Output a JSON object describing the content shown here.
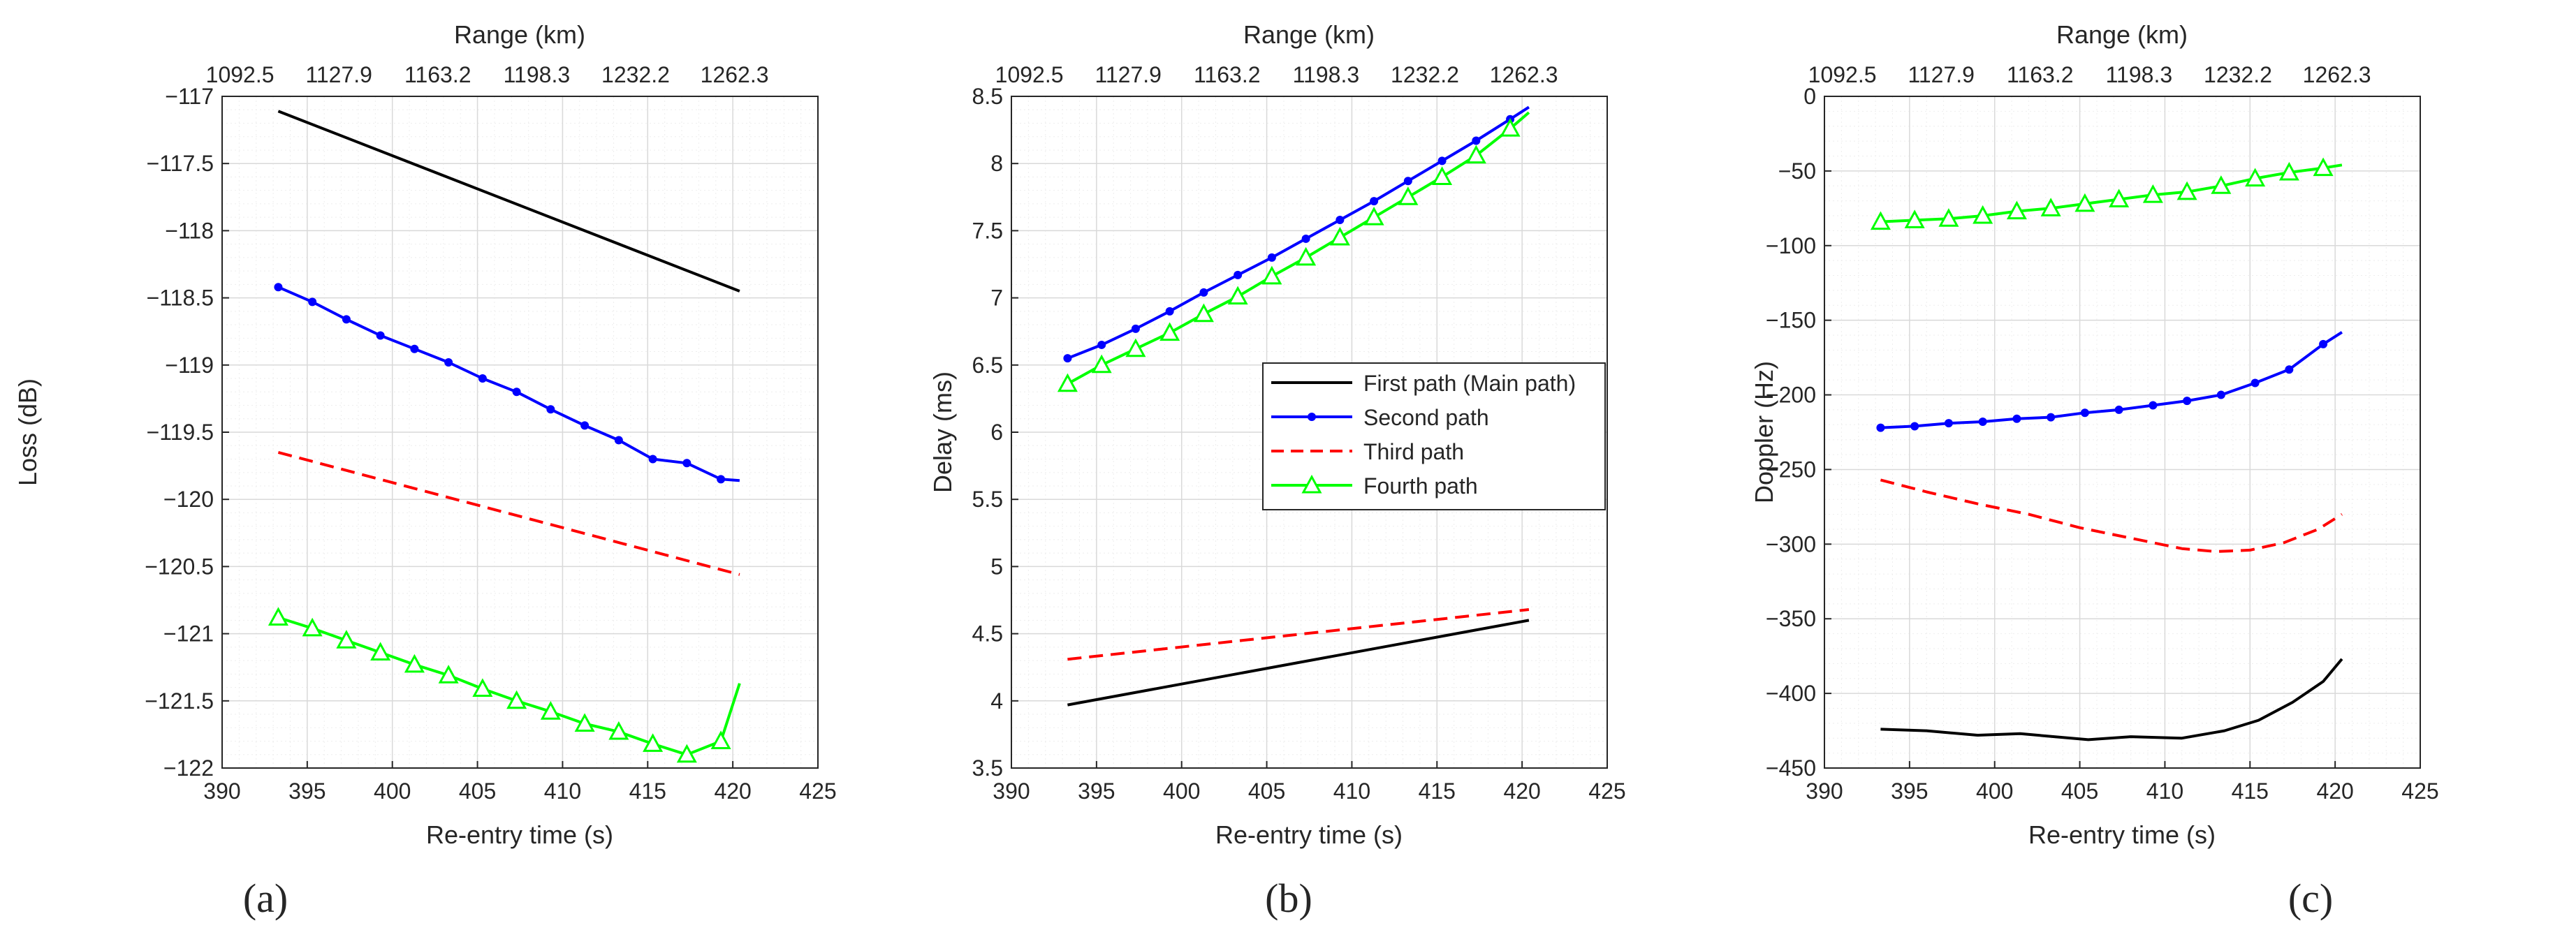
{
  "figure": {
    "colors": {
      "first_path": "#000000",
      "second_path": "#0000ff",
      "third_path": "#ff0000",
      "fourth_path": "#00ff00",
      "axis": "#262626",
      "grid_major": "#d9d9d9",
      "grid_minor": "#eeeeee"
    },
    "legend": [
      "First path (Main path)",
      "Second path",
      "Third path",
      "Fourth path"
    ]
  },
  "chart_data": [
    {
      "type": "line",
      "panel_label": "(a)",
      "title": "",
      "xlabel": "Re-entry time (s)",
      "ylabel": "Loss (dB)",
      "top_xlabel": "Range (km)",
      "top_tick_labels": [
        "1092.5",
        "1127.9",
        "1163.2",
        "1198.3",
        "1232.2",
        "1262.3"
      ],
      "xlim": [
        390,
        425
      ],
      "ylim": [
        -122,
        -117
      ],
      "xticks": [
        390,
        395,
        400,
        405,
        410,
        415,
        420,
        425
      ],
      "yticks": [
        -122,
        -121.5,
        -121,
        -120.5,
        -120,
        -119.5,
        -119,
        -118.5,
        -118,
        -117.5,
        -117
      ],
      "ytick_labels": [
        "−122",
        "−121.5",
        "−121",
        "−120.5",
        "−120",
        "−119.5",
        "−119",
        "−118.5",
        "−118",
        "−117.5",
        "−117"
      ],
      "grid": true,
      "legend_position": "none",
      "series": [
        {
          "name": "First path (Main path)",
          "style": "solid",
          "marker": "none",
          "x": [
            393.3,
            420.4
          ],
          "y": [
            -117.11,
            -118.45
          ]
        },
        {
          "name": "Second path",
          "style": "solid",
          "marker": "dot",
          "x": [
            393.3,
            395.3,
            397.3,
            399.3,
            401.3,
            403.3,
            405.3,
            407.3,
            409.3,
            411.3,
            413.3,
            415.3,
            417.3,
            419.3,
            420.4
          ],
          "y": [
            -118.42,
            -118.53,
            -118.66,
            -118.78,
            -118.88,
            -118.98,
            -119.1,
            -119.2,
            -119.33,
            -119.45,
            -119.56,
            -119.7,
            -119.73,
            -119.85,
            -119.86
          ]
        },
        {
          "name": "Third path",
          "style": "dashed",
          "marker": "none",
          "x": [
            393.3,
            420.4
          ],
          "y": [
            -119.65,
            -120.56
          ]
        },
        {
          "name": "Fourth path",
          "style": "solid",
          "marker": "triangle",
          "x": [
            393.3,
            395.3,
            397.3,
            399.3,
            401.3,
            403.3,
            405.3,
            407.3,
            409.3,
            411.3,
            413.3,
            415.3,
            417.3,
            419.3,
            420.4
          ],
          "y": [
            -120.88,
            -120.96,
            -121.05,
            -121.14,
            -121.23,
            -121.31,
            -121.41,
            -121.5,
            -121.58,
            -121.67,
            -121.73,
            -121.82,
            -121.9,
            -121.8,
            -121.37
          ]
        }
      ]
    },
    {
      "type": "line",
      "panel_label": "(b)",
      "title": "",
      "xlabel": "Re-entry time (s)",
      "ylabel": "Delay (ms)",
      "top_xlabel": "Range (km)",
      "top_tick_labels": [
        "1092.5",
        "1127.9",
        "1163.2",
        "1198.3",
        "1232.2",
        "1262.3"
      ],
      "xlim": [
        390,
        425
      ],
      "ylim": [
        3.5,
        8.5
      ],
      "xticks": [
        390,
        395,
        400,
        405,
        410,
        415,
        420,
        425
      ],
      "yticks": [
        3.5,
        4,
        4.5,
        5,
        5.5,
        6,
        6.5,
        7,
        7.5,
        8,
        8.5
      ],
      "ytick_labels": [
        "3.5",
        "4",
        "4.5",
        "5",
        "5.5",
        "6",
        "6.5",
        "7",
        "7.5",
        "8",
        "8.5"
      ],
      "grid": true,
      "legend_position": "center",
      "series": [
        {
          "name": "First path (Main path)",
          "style": "solid",
          "marker": "none",
          "x": [
            393.3,
            420.4
          ],
          "y": [
            3.97,
            4.6
          ]
        },
        {
          "name": "Second path",
          "style": "solid",
          "marker": "dot",
          "x": [
            393.3,
            395.3,
            397.3,
            399.3,
            401.3,
            403.3,
            405.3,
            407.3,
            409.3,
            411.3,
            413.3,
            415.3,
            417.3,
            419.3,
            420.4
          ],
          "y": [
            6.55,
            6.65,
            6.77,
            6.9,
            7.04,
            7.17,
            7.3,
            7.44,
            7.58,
            7.72,
            7.87,
            8.02,
            8.17,
            8.33,
            8.42
          ]
        },
        {
          "name": "Third path",
          "style": "dashed",
          "marker": "none",
          "x": [
            393.3,
            420.4
          ],
          "y": [
            4.31,
            4.68
          ]
        },
        {
          "name": "Fourth path",
          "style": "solid",
          "marker": "triangle",
          "x": [
            393.3,
            395.3,
            397.3,
            399.3,
            401.3,
            403.3,
            405.3,
            407.3,
            409.3,
            411.3,
            413.3,
            415.3,
            417.3,
            419.3,
            420.4
          ],
          "y": [
            6.36,
            6.5,
            6.62,
            6.74,
            6.88,
            7.01,
            7.16,
            7.3,
            7.45,
            7.6,
            7.75,
            7.9,
            8.06,
            8.26,
            8.38
          ]
        }
      ]
    },
    {
      "type": "line",
      "panel_label": "(c)",
      "title": "",
      "xlabel": "Re-entry time (s)",
      "ylabel": "Doppler (Hz)",
      "top_xlabel": "Range (km)",
      "top_tick_labels": [
        "1092.5",
        "1127.9",
        "1163.2",
        "1198.3",
        "1232.2",
        "1262.3"
      ],
      "xlim": [
        390,
        425
      ],
      "ylim": [
        -450,
        0
      ],
      "xticks": [
        390,
        395,
        400,
        405,
        410,
        415,
        420,
        425
      ],
      "yticks": [
        -450,
        -400,
        -350,
        -300,
        -250,
        -200,
        -150,
        -100,
        -50,
        0
      ],
      "ytick_labels": [
        "−450",
        "−400",
        "−350",
        "−300",
        "−250",
        "−200",
        "−150",
        "−100",
        "−50",
        "0"
      ],
      "grid": true,
      "legend_position": "none",
      "series": [
        {
          "name": "First path (Main path)",
          "style": "solid",
          "marker": "none",
          "x": [
            393.3,
            396,
            399,
            401.5,
            403.5,
            405.5,
            408,
            411,
            413.5,
            415.5,
            417.5,
            419.3,
            420.4
          ],
          "y": [
            -424,
            -425,
            -428,
            -427,
            -429,
            -431,
            -429,
            -430,
            -425,
            -418,
            -406,
            -392,
            -377
          ]
        },
        {
          "name": "Second path",
          "style": "solid",
          "marker": "dot",
          "x": [
            393.3,
            395.3,
            397.3,
            399.3,
            401.3,
            403.3,
            405.3,
            407.3,
            409.3,
            411.3,
            413.3,
            415.3,
            417.3,
            419.3,
            420.4
          ],
          "y": [
            -222,
            -221,
            -219,
            -218,
            -216,
            -215,
            -212,
            -210,
            -207,
            -204,
            -200,
            -192,
            -183,
            -166,
            -158
          ]
        },
        {
          "name": "Third path",
          "style": "dashed",
          "marker": "none",
          "x": [
            393.3,
            396,
            399,
            402,
            405,
            408,
            411,
            413,
            415,
            417,
            419,
            420.4
          ],
          "y": [
            -257,
            -265,
            -273,
            -280,
            -289,
            -296,
            -303,
            -305,
            -304,
            -299,
            -290,
            -280
          ]
        },
        {
          "name": "Fourth path",
          "style": "solid",
          "marker": "triangle",
          "x": [
            393.3,
            395.3,
            397.3,
            399.3,
            401.3,
            403.3,
            405.3,
            407.3,
            409.3,
            411.3,
            413.3,
            415.3,
            417.3,
            419.3,
            420.4
          ],
          "y": [
            -84,
            -83,
            -82,
            -80,
            -77,
            -75,
            -72,
            -69,
            -66,
            -64,
            -60,
            -55,
            -51,
            -48,
            -46
          ]
        }
      ]
    }
  ]
}
